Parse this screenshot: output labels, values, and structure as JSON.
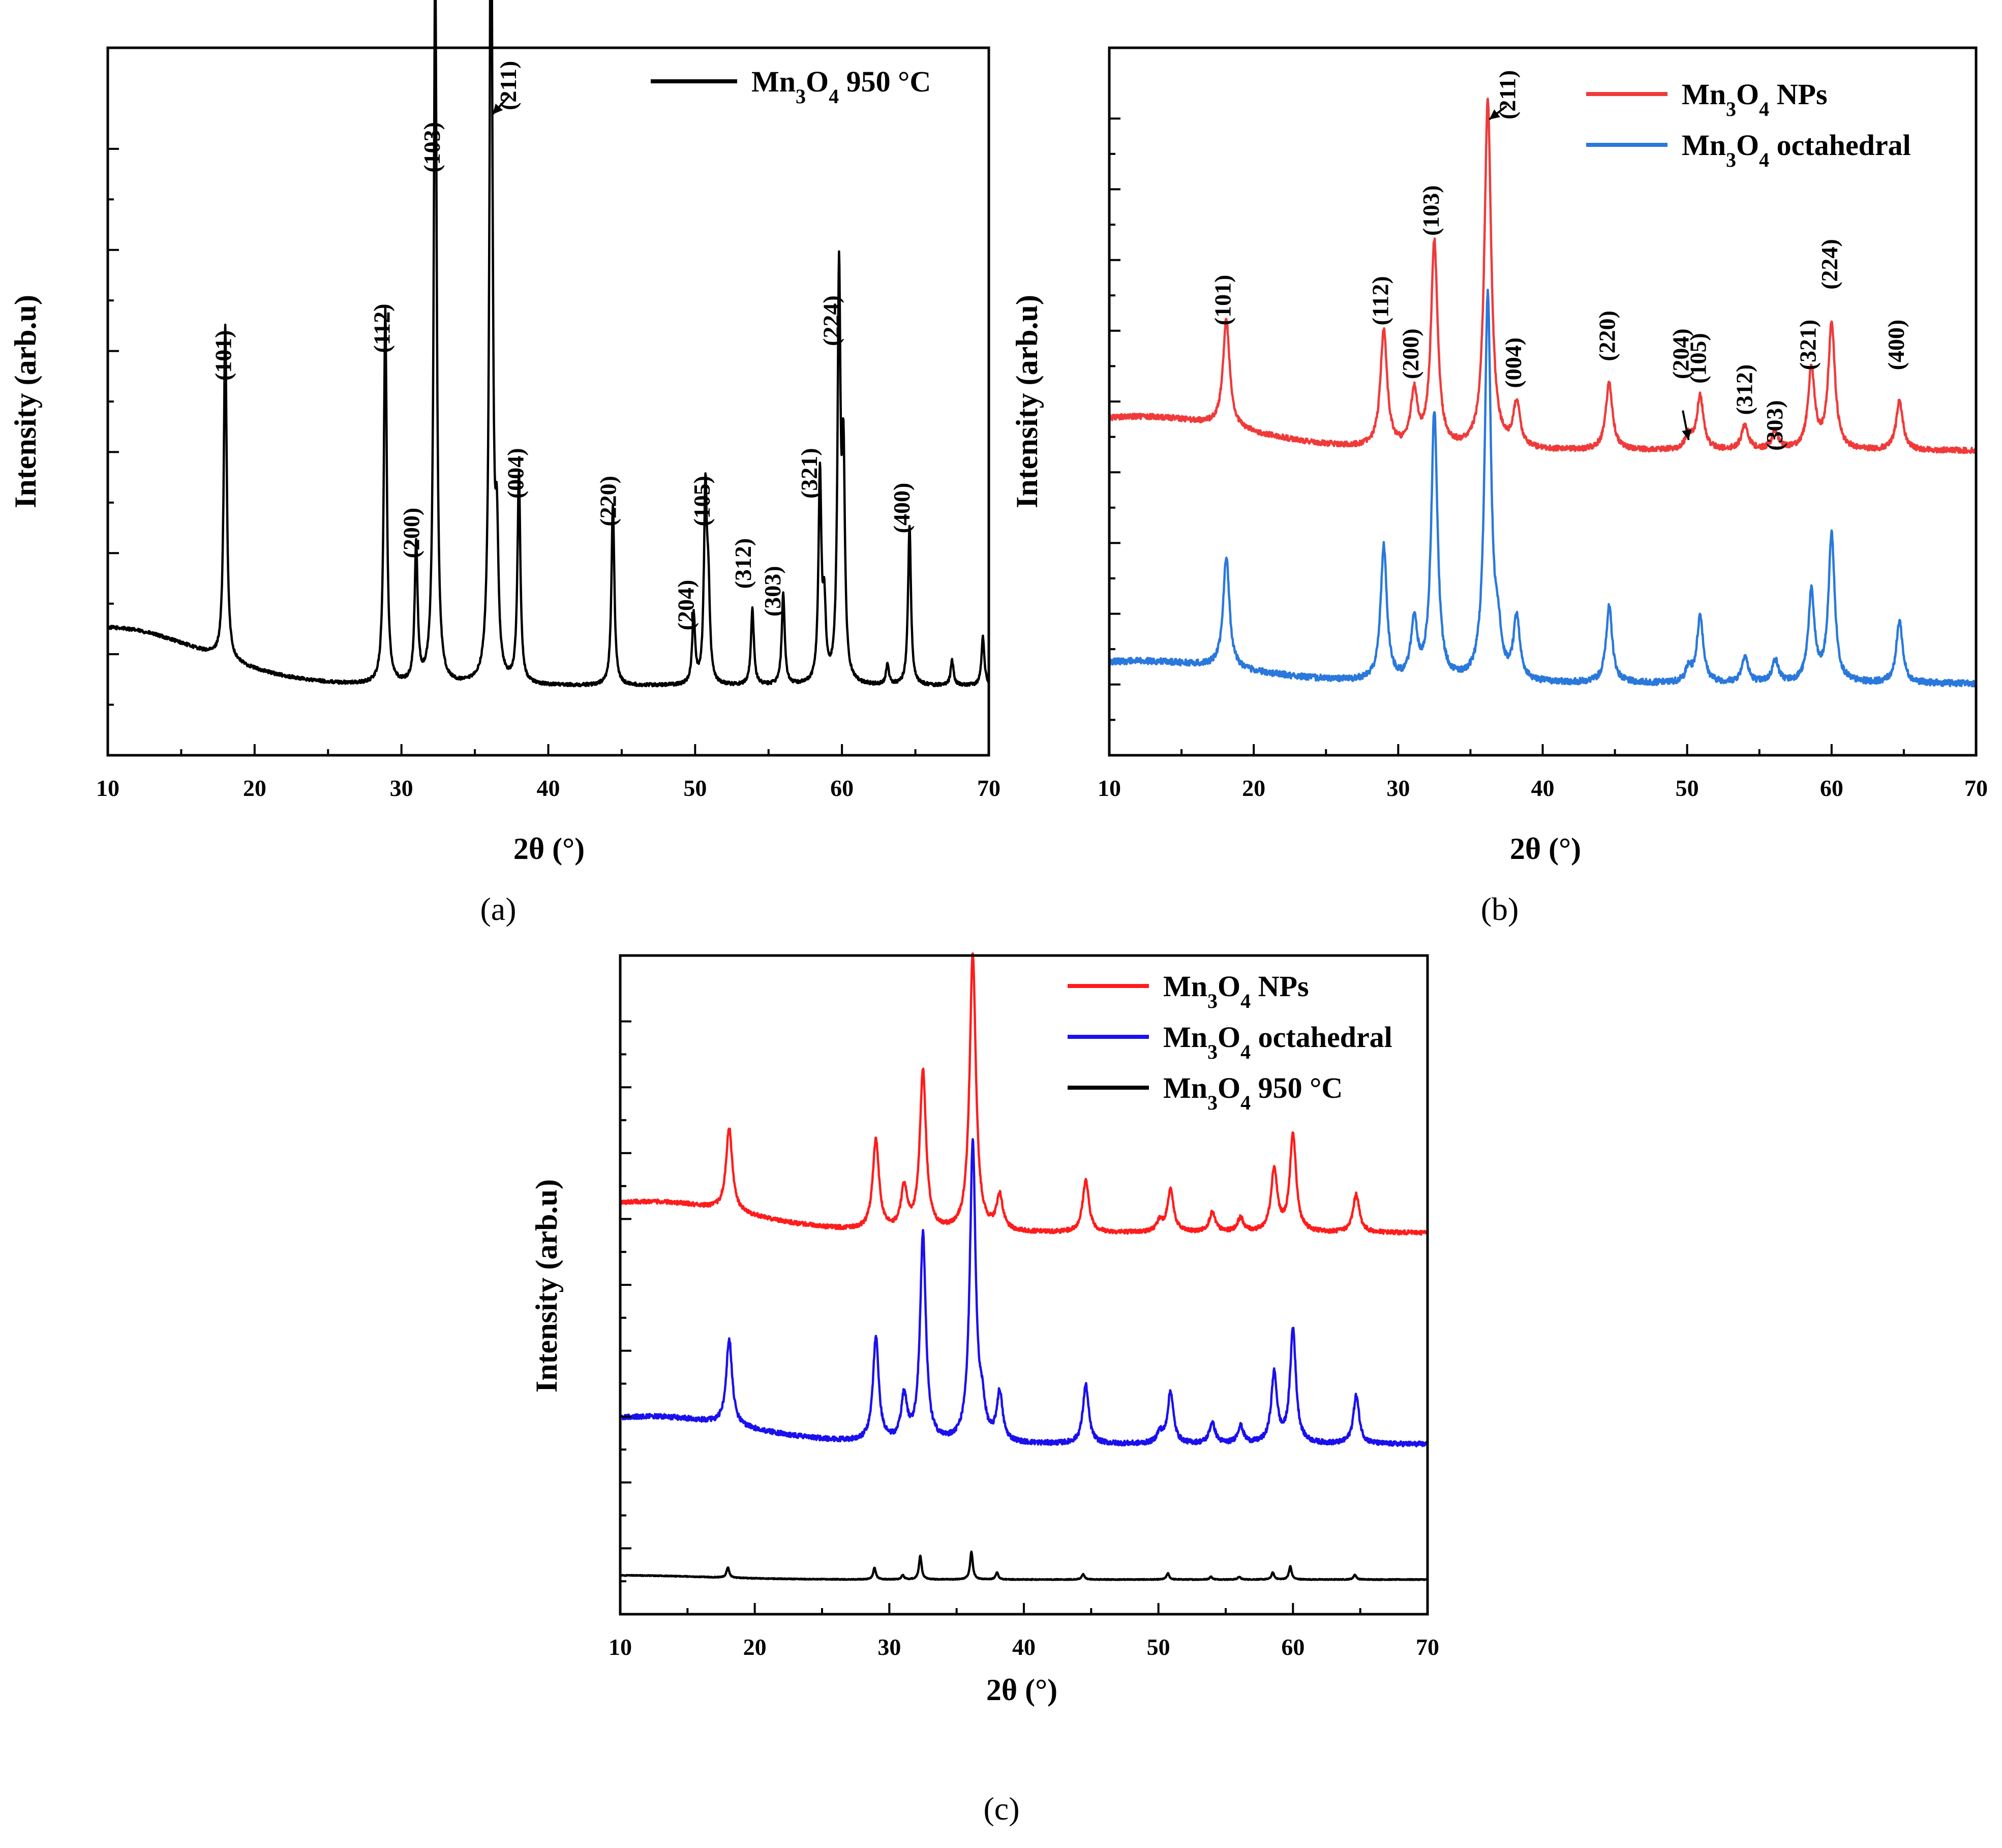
{
  "chart_data": [
    {
      "id": "a",
      "type": "line",
      "caption": "(a)",
      "xlabel": "2θ (°)",
      "ylabel": "Intensity (arb.u)",
      "xlim": [
        10,
        70
      ],
      "ylim": [
        -0.5,
        4.6
      ],
      "xticks": [
        "10",
        "20",
        "30",
        "40",
        "50",
        "60",
        "70"
      ],
      "legend_position": "top-right",
      "series": [
        {
          "name": "Mn3O4 950 °C",
          "color": "#000000",
          "offset": 0,
          "noise": 0.012,
          "background": {
            "amp": 0.42,
            "center": 10,
            "width": 9
          },
          "peaks": [
            [
              18.0,
              2.4
            ],
            [
              28.9,
              2.7
            ],
            [
              31.0,
              1.0
            ],
            [
              32.3,
              5.3
            ],
            [
              36.1,
              6.3
            ],
            [
              36.5,
              0.9
            ],
            [
              38.0,
              1.5
            ],
            [
              44.4,
              1.3
            ],
            [
              49.9,
              0.5
            ],
            [
              50.7,
              1.35
            ],
            [
              50.9,
              0.6
            ],
            [
              53.9,
              0.55
            ],
            [
              56.0,
              0.65
            ],
            [
              58.5,
              1.5
            ],
            [
              58.8,
              0.5
            ],
            [
              59.8,
              2.9
            ],
            [
              60.1,
              1.5
            ],
            [
              63.1,
              0.15
            ],
            [
              64.6,
              1.15
            ],
            [
              67.5,
              0.18
            ],
            [
              69.6,
              0.35
            ]
          ],
          "peak_width": 0.12
        }
      ],
      "peak_labels": [
        {
          "text": "(101)",
          "x": 18.4,
          "y": 2.2
        },
        {
          "text": "(112)",
          "x": 29.2,
          "y": 2.4
        },
        {
          "text": "(200)",
          "x": 31.2,
          "y": 0.92
        },
        {
          "text": "(103)",
          "x": 32.6,
          "y": 3.7
        },
        {
          "text": "(211)",
          "x": 37.8,
          "y": 4.15
        },
        {
          "text": "(004)",
          "x": 38.3,
          "y": 1.35
        },
        {
          "text": "(220)",
          "x": 44.6,
          "y": 1.15
        },
        {
          "text": "(204)",
          "x": 49.9,
          "y": 0.4
        },
        {
          "text": "(105)",
          "x": 51.0,
          "y": 1.15
        },
        {
          "text": "(312)",
          "x": 53.8,
          "y": 0.7
        },
        {
          "text": "(303)",
          "x": 55.8,
          "y": 0.5
        },
        {
          "text": "(321)",
          "x": 58.3,
          "y": 1.35
        },
        {
          "text": "(224)",
          "x": 59.8,
          "y": 2.45
        },
        {
          "text": "(400)",
          "x": 64.6,
          "y": 1.1
        }
      ],
      "arrows": [
        {
          "from": [
            37.3,
            4.25
          ],
          "to": [
            36.2,
            4.12
          ]
        }
      ]
    },
    {
      "id": "b",
      "type": "line",
      "caption": "(b)",
      "xlabel": "2θ (°)",
      "ylabel": "Intensity (arb.u)",
      "xlim": [
        10,
        70
      ],
      "ylim": [
        -0.3,
        7.6
      ],
      "xticks": [
        "10",
        "20",
        "30",
        "40",
        "50",
        "60",
        "70"
      ],
      "legend_position": "top-right",
      "series": [
        {
          "name": "Mn3O4 NPs",
          "color": "#f03a3a",
          "offset": 3.1,
          "noise": 0.03,
          "background": {
            "amp": 0.38,
            "center": 12,
            "width": 10
          },
          "peaks": [
            [
              18.1,
              1.2
            ],
            [
              29.0,
              1.3
            ],
            [
              31.1,
              0.6
            ],
            [
              32.5,
              2.3
            ],
            [
              36.2,
              3.9
            ],
            [
              38.2,
              0.5
            ],
            [
              44.6,
              0.75
            ],
            [
              50.1,
              0.15
            ],
            [
              50.9,
              0.6
            ],
            [
              54.0,
              0.28
            ],
            [
              56.1,
              0.2
            ],
            [
              58.6,
              0.9
            ],
            [
              60.0,
              1.4
            ],
            [
              64.7,
              0.55
            ]
          ],
          "peak_width": 0.28
        },
        {
          "name": "Mn3O4 octahedral",
          "color": "#2a78dc",
          "offset": 0.5,
          "noise": 0.035,
          "background": {
            "amp": 0.25,
            "center": 12,
            "width": 10
          },
          "peaks": [
            [
              18.1,
              1.25
            ],
            [
              29.0,
              1.5
            ],
            [
              31.1,
              0.65
            ],
            [
              32.5,
              3.0
            ],
            [
              36.2,
              4.3
            ],
            [
              36.9,
              0.4
            ],
            [
              38.2,
              0.7
            ],
            [
              44.6,
              0.85
            ],
            [
              50.1,
              0.15
            ],
            [
              50.9,
              0.75
            ],
            [
              54.0,
              0.3
            ],
            [
              56.1,
              0.25
            ],
            [
              58.6,
              1.0
            ],
            [
              60.0,
              1.65
            ],
            [
              64.7,
              0.7
            ]
          ],
          "peak_width": 0.26
        }
      ],
      "peak_labels": [
        {
          "text": "(101)",
          "x": 18.4,
          "y": 4.5
        },
        {
          "text": "(112)",
          "x": 29.3,
          "y": 4.5
        },
        {
          "text": "(200)",
          "x": 31.4,
          "y": 3.9
        },
        {
          "text": "(103)",
          "x": 32.8,
          "y": 5.5
        },
        {
          "text": "(211)",
          "x": 38.1,
          "y": 6.8
        },
        {
          "text": "(004)",
          "x": 38.5,
          "y": 3.8
        },
        {
          "text": "(220)",
          "x": 45.0,
          "y": 4.1
        },
        {
          "text": "(204)",
          "x": 50.1,
          "y": 3.9
        },
        {
          "text": "(105)",
          "x": 51.3,
          "y": 3.85
        },
        {
          "text": "(312)",
          "x": 54.5,
          "y": 3.5
        },
        {
          "text": "(303)",
          "x": 56.6,
          "y": 3.1
        },
        {
          "text": "(321)",
          "x": 58.9,
          "y": 4.0
        },
        {
          "text": "(224)",
          "x": 60.4,
          "y": 4.9
        },
        {
          "text": "(400)",
          "x": 65.0,
          "y": 4.0
        }
      ],
      "arrows": [
        {
          "from": [
            37.5,
            6.95
          ],
          "to": [
            36.3,
            6.8
          ]
        },
        {
          "from": [
            49.7,
            3.55
          ],
          "to": [
            50.1,
            3.22
          ]
        }
      ]
    },
    {
      "id": "c",
      "type": "line",
      "caption": "(c)",
      "xlabel": "2θ (°)",
      "ylabel": "Intensity (arb.u)",
      "xlim": [
        10,
        70
      ],
      "ylim": [
        -0.5,
        9.0
      ],
      "xticks": [
        "10",
        "20",
        "30",
        "40",
        "50",
        "60",
        "70"
      ],
      "legend_position": "top-right",
      "series": [
        {
          "name": "Mn3O4 NPs",
          "color": "#ff1c1c",
          "offset": 5.0,
          "noise": 0.03,
          "background": {
            "amp": 0.45,
            "center": 12,
            "width": 10
          },
          "peaks": [
            [
              18.1,
              1.2
            ],
            [
              29.0,
              1.3
            ],
            [
              31.1,
              0.6
            ],
            [
              32.5,
              2.3
            ],
            [
              36.2,
              4.0
            ],
            [
              38.2,
              0.5
            ],
            [
              44.6,
              0.75
            ],
            [
              50.1,
              0.15
            ],
            [
              50.9,
              0.6
            ],
            [
              54.0,
              0.28
            ],
            [
              56.1,
              0.2
            ],
            [
              58.6,
              0.9
            ],
            [
              60.0,
              1.4
            ],
            [
              64.7,
              0.55
            ]
          ],
          "peak_width": 0.28
        },
        {
          "name": "Mn3O4 octahedral",
          "color": "#1a10ee",
          "offset": 1.95,
          "noise": 0.035,
          "background": {
            "amp": 0.4,
            "center": 12,
            "width": 10
          },
          "peaks": [
            [
              18.1,
              1.25
            ],
            [
              29.0,
              1.5
            ],
            [
              31.1,
              0.65
            ],
            [
              32.5,
              3.0
            ],
            [
              36.2,
              4.3
            ],
            [
              36.9,
              0.4
            ],
            [
              38.2,
              0.7
            ],
            [
              44.6,
              0.85
            ],
            [
              50.1,
              0.15
            ],
            [
              50.9,
              0.75
            ],
            [
              54.0,
              0.3
            ],
            [
              56.1,
              0.25
            ],
            [
              58.6,
              1.0
            ],
            [
              60.0,
              1.65
            ],
            [
              64.7,
              0.7
            ]
          ],
          "peak_width": 0.26
        },
        {
          "name": "Mn3O4 950 °C",
          "color": "#000000",
          "offset": 0.0,
          "noise": 0.006,
          "background": {
            "amp": 0.06,
            "center": 10,
            "width": 9
          },
          "peaks": [
            [
              18.0,
              0.15
            ],
            [
              28.9,
              0.17
            ],
            [
              31.0,
              0.06
            ],
            [
              32.3,
              0.34
            ],
            [
              36.1,
              0.4
            ],
            [
              38.0,
              0.1
            ],
            [
              44.4,
              0.08
            ],
            [
              50.7,
              0.09
            ],
            [
              53.9,
              0.04
            ],
            [
              56.0,
              0.04
            ],
            [
              58.5,
              0.1
            ],
            [
              59.8,
              0.19
            ],
            [
              64.6,
              0.07
            ]
          ],
          "peak_width": 0.12
        }
      ],
      "peak_labels": [],
      "arrows": []
    }
  ]
}
